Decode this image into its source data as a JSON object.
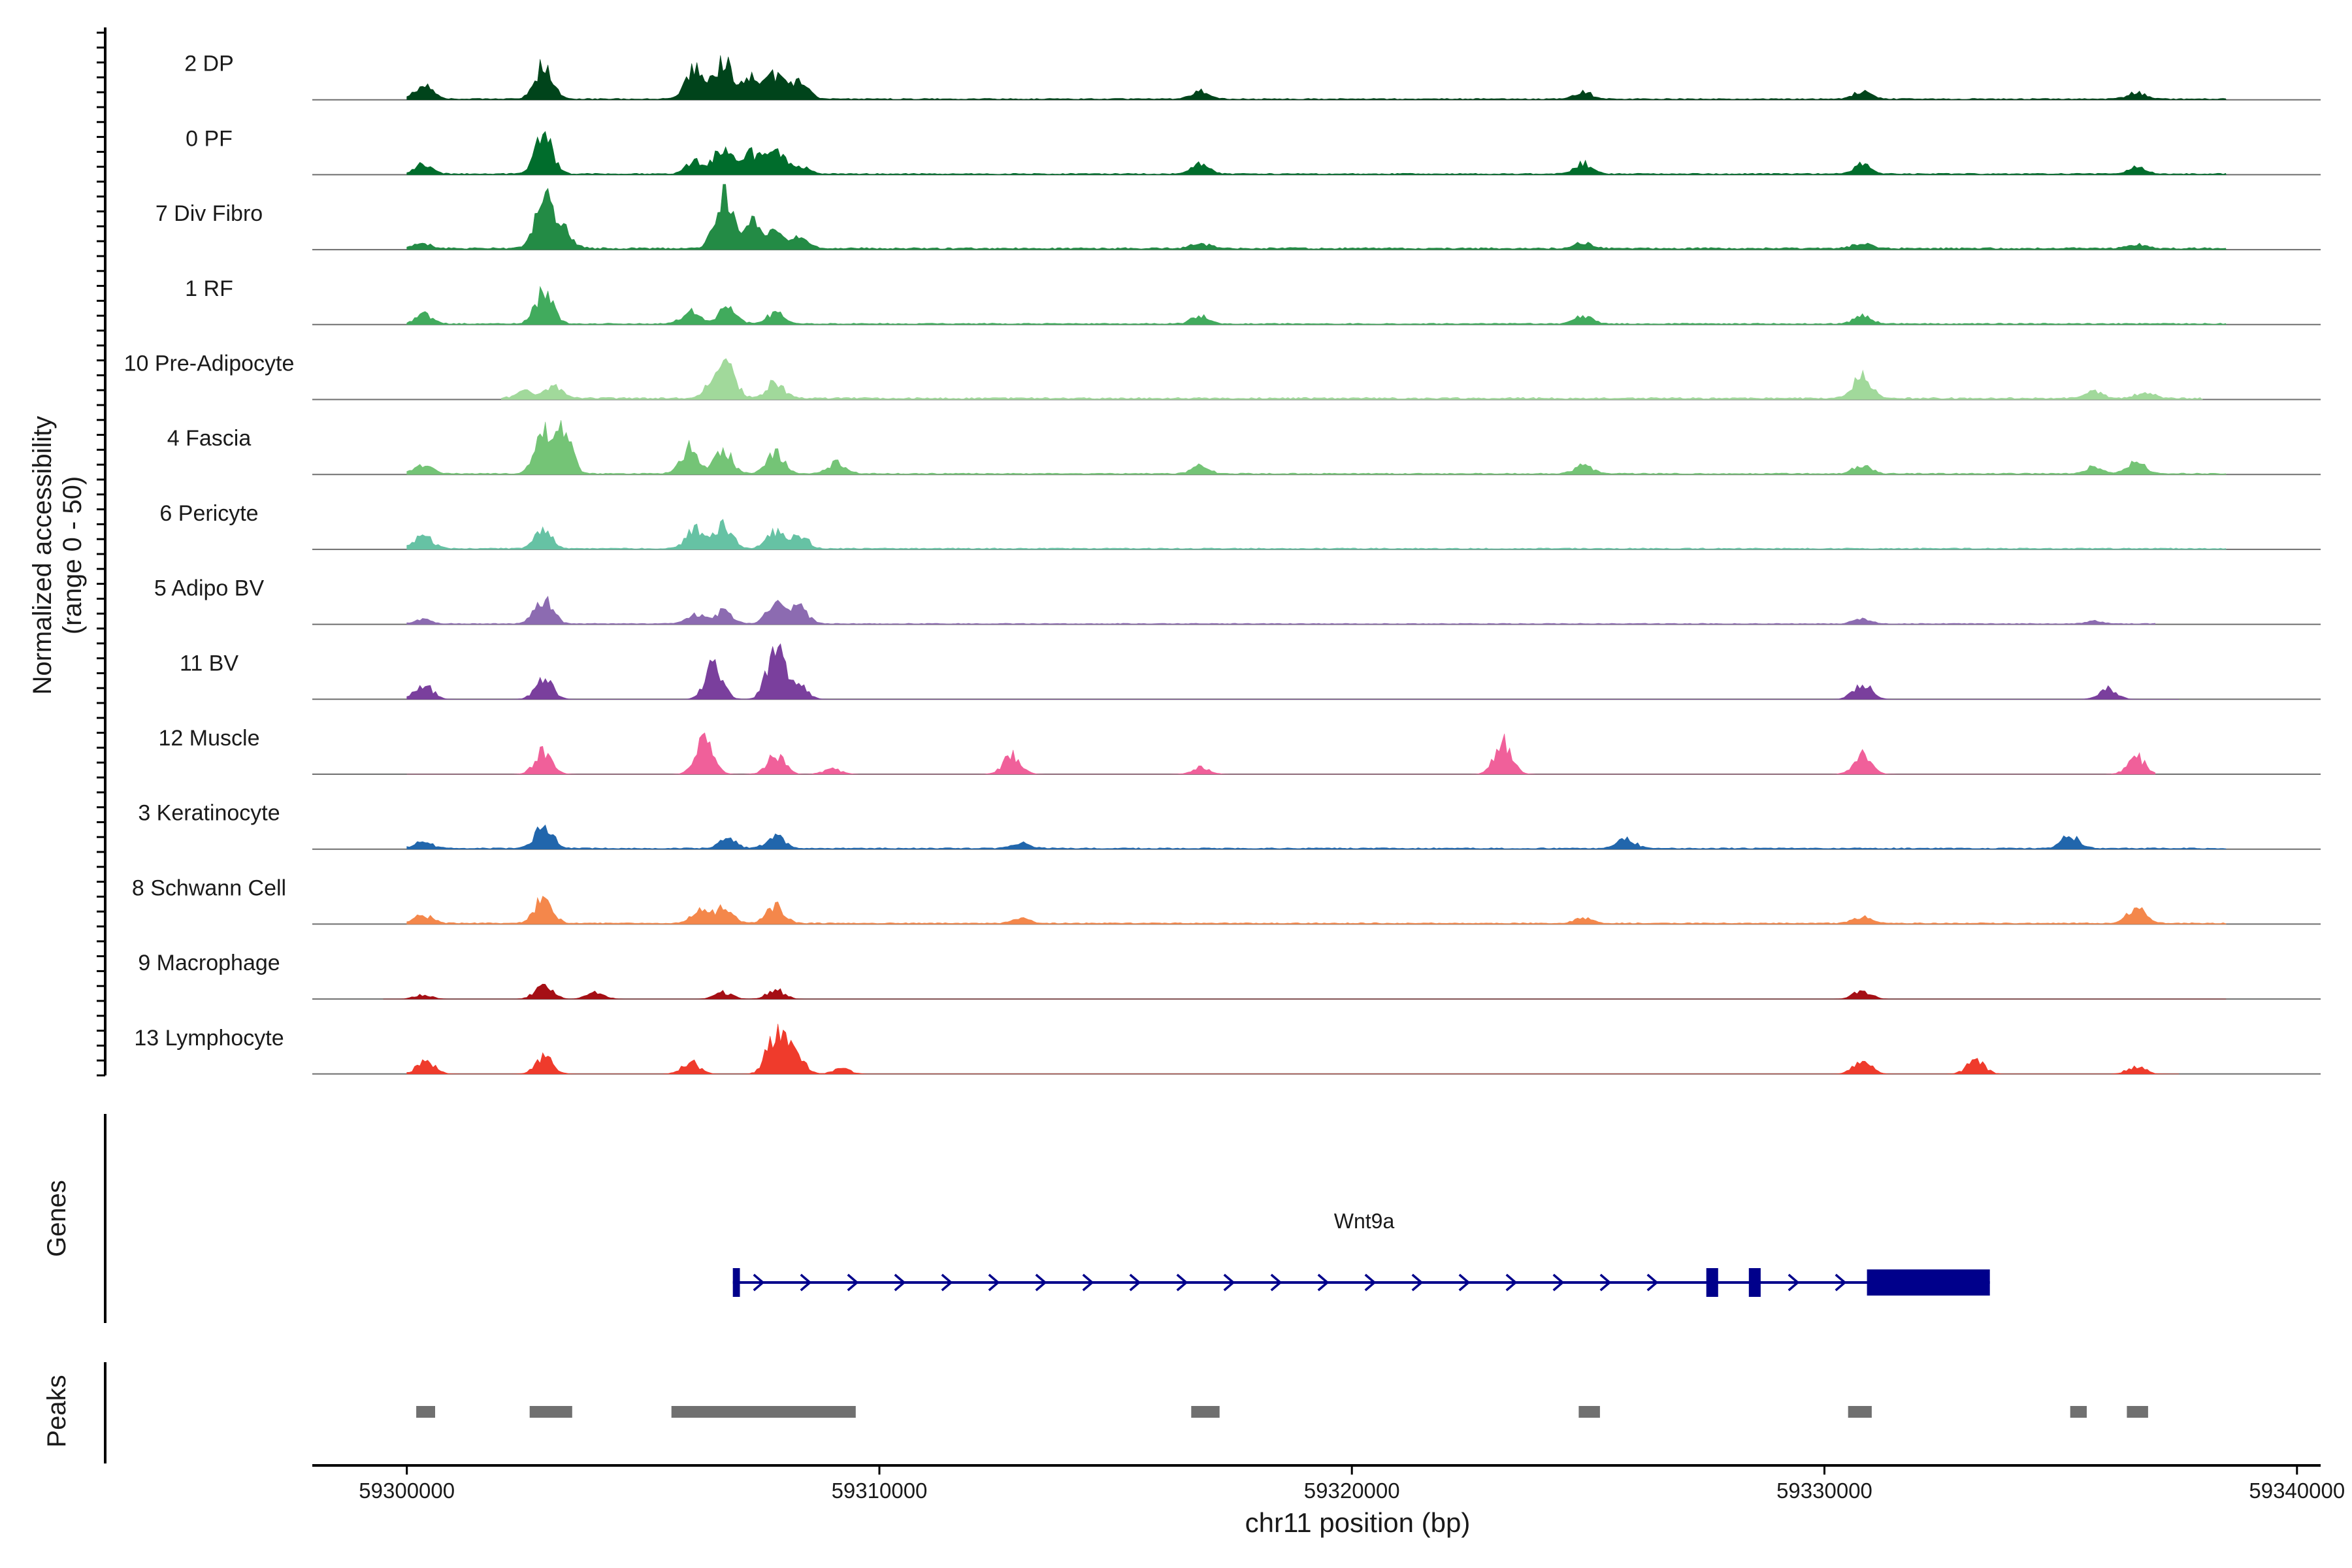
{
  "chart_data": {
    "type": "area",
    "title": "",
    "xlabel": "chr11 position (bp)",
    "ylabel_line1": "Normalized accessibility",
    "ylabel_line2": "(range 0 - 50)",
    "xlim": [
      59298000,
      59340500
    ],
    "ylim": [
      0,
      50
    ],
    "x_ticks": [
      59300000,
      59310000,
      59320000,
      59330000,
      59340000
    ],
    "x_tick_labels": [
      "59300000",
      "59310000",
      "59320000",
      "59330000",
      "59340000"
    ],
    "track_labels": {
      "genes": "Genes",
      "peaks": "Peaks"
    },
    "series": [
      {
        "name": "2 DP",
        "color": "#00441b",
        "peaks": [
          [
            59300350,
            10
          ],
          [
            59302900,
            25
          ],
          [
            59306100,
            22
          ],
          [
            59306700,
            30
          ],
          [
            59307300,
            15
          ],
          [
            59307800,
            17
          ],
          [
            59308300,
            13
          ],
          [
            59316800,
            6
          ],
          [
            59324900,
            5
          ],
          [
            59330800,
            6
          ],
          [
            59336600,
            5
          ]
        ],
        "baseline": 0.8,
        "extent": [
          59300000,
          59338500
        ]
      },
      {
        "name": "0 PF",
        "color": "#006d2c",
        "peaks": [
          [
            59300350,
            7
          ],
          [
            59302900,
            28
          ],
          [
            59306100,
            10
          ],
          [
            59306700,
            20
          ],
          [
            59307300,
            15
          ],
          [
            59307800,
            18
          ],
          [
            59308300,
            6
          ],
          [
            59316800,
            8
          ],
          [
            59324900,
            8
          ],
          [
            59330800,
            7
          ],
          [
            59336600,
            5
          ]
        ],
        "baseline": 0.8,
        "extent": [
          59300000,
          59338500
        ]
      },
      {
        "name": "7 Div Fibro",
        "color": "#238b45",
        "peaks": [
          [
            59300300,
            4
          ],
          [
            59302900,
            36
          ],
          [
            59303300,
            14
          ],
          [
            59306700,
            40
          ],
          [
            59307300,
            20
          ],
          [
            59307800,
            12
          ],
          [
            59308300,
            8
          ],
          [
            59316800,
            4
          ],
          [
            59324900,
            4
          ],
          [
            59330800,
            4
          ],
          [
            59336600,
            3
          ]
        ],
        "baseline": 1.2,
        "extent": [
          59300000,
          59338500
        ]
      },
      {
        "name": "1 RF",
        "color": "#41ab5d",
        "peaks": [
          [
            59300350,
            7
          ],
          [
            59302900,
            24
          ],
          [
            59306000,
            10
          ],
          [
            59306800,
            13
          ],
          [
            59307800,
            8
          ],
          [
            59316800,
            6
          ],
          [
            59324900,
            6
          ],
          [
            59330800,
            6
          ]
        ],
        "baseline": 0.8,
        "extent": [
          59300000,
          59338500
        ]
      },
      {
        "name": "10 Pre-Adipocyte",
        "color": "#a1d99b",
        "peaks": [
          [
            59302500,
            5
          ],
          [
            59303100,
            9
          ],
          [
            59306500,
            12
          ],
          [
            59306800,
            20
          ],
          [
            59307800,
            12
          ],
          [
            59330800,
            17
          ],
          [
            59335700,
            5
          ],
          [
            59336800,
            5
          ]
        ],
        "baseline": 1.2,
        "extent": [
          59302000,
          59338000
        ]
      },
      {
        "name": "4 Fascia",
        "color": "#74c476",
        "peaks": [
          [
            59300350,
            7
          ],
          [
            59302900,
            28
          ],
          [
            59303300,
            30
          ],
          [
            59306000,
            20
          ],
          [
            59306700,
            17
          ],
          [
            59307800,
            15
          ],
          [
            59309100,
            8
          ],
          [
            59316800,
            6
          ],
          [
            59324900,
            6
          ],
          [
            59330800,
            6
          ],
          [
            59335700,
            5
          ],
          [
            59336600,
            10
          ]
        ],
        "baseline": 0.8,
        "extent": [
          59300000,
          59338500
        ]
      },
      {
        "name": "6 Pericyte",
        "color": "#66c2a4",
        "peaks": [
          [
            59300350,
            10
          ],
          [
            59302900,
            14
          ],
          [
            59306100,
            15
          ],
          [
            59306700,
            17
          ],
          [
            59307800,
            12
          ],
          [
            59308300,
            10
          ]
        ],
        "baseline": 0.8,
        "extent": [
          59300000,
          59338500
        ]
      },
      {
        "name": "5 Adipo BV",
        "color": "#8c6bb1",
        "peaks": [
          [
            59300350,
            3
          ],
          [
            59302900,
            20
          ],
          [
            59306100,
            8
          ],
          [
            59306700,
            10
          ],
          [
            59307800,
            15
          ],
          [
            59308300,
            12
          ],
          [
            59330800,
            4
          ],
          [
            59335700,
            2
          ]
        ],
        "baseline": 0.6,
        "extent": [
          59300000,
          59337000
        ]
      },
      {
        "name": "11 BV",
        "color": "#7a3f9d",
        "peaks": [
          [
            59300350,
            12
          ],
          [
            59302900,
            15
          ],
          [
            59306500,
            25
          ],
          [
            59307800,
            40
          ],
          [
            59308300,
            10
          ],
          [
            59330800,
            12
          ],
          [
            59336000,
            8
          ]
        ],
        "baseline": 0,
        "extent": [
          59300000,
          59337500
        ]
      },
      {
        "name": "12 Muscle",
        "color": "#f0609a",
        "peaks": [
          [
            59302900,
            18
          ],
          [
            59306300,
            25
          ],
          [
            59307800,
            15
          ],
          [
            59309000,
            4
          ],
          [
            59312800,
            14
          ],
          [
            59316800,
            5
          ],
          [
            59323200,
            24
          ],
          [
            59330800,
            15
          ],
          [
            59336600,
            13
          ]
        ],
        "baseline": 0,
        "extent": [
          59300000,
          59337000
        ]
      },
      {
        "name": "3 Keratinocyte",
        "color": "#2166ac",
        "peaks": [
          [
            59300350,
            5
          ],
          [
            59302900,
            16
          ],
          [
            59306800,
            7
          ],
          [
            59307800,
            9
          ],
          [
            59313000,
            4
          ],
          [
            59325800,
            8
          ],
          [
            59335200,
            10
          ]
        ],
        "baseline": 0.8,
        "extent": [
          59300000,
          59338500
        ]
      },
      {
        "name": "8 Schwann Cell",
        "color": "#f4874b",
        "peaks": [
          [
            59300350,
            6
          ],
          [
            59302900,
            20
          ],
          [
            59306200,
            9
          ],
          [
            59306700,
            11
          ],
          [
            59307800,
            13
          ],
          [
            59313000,
            4
          ],
          [
            59324900,
            4
          ],
          [
            59330800,
            5
          ],
          [
            59336600,
            12
          ]
        ],
        "baseline": 0.8,
        "extent": [
          59300000,
          59338500
        ]
      },
      {
        "name": "9 Macrophage",
        "color": "#a50f15",
        "peaks": [
          [
            59300350,
            3
          ],
          [
            59302900,
            11
          ],
          [
            59304000,
            5
          ],
          [
            59306700,
            5
          ],
          [
            59307800,
            7
          ],
          [
            59330800,
            6
          ]
        ],
        "baseline": 0,
        "extent": [
          59299500,
          59338500
        ]
      },
      {
        "name": "13 Lymphocyte",
        "color": "#ef3b2c",
        "peaks": [
          [
            59300400,
            10
          ],
          [
            59302900,
            13
          ],
          [
            59306000,
            9
          ],
          [
            59307800,
            30
          ],
          [
            59308200,
            20
          ],
          [
            59309200,
            4
          ],
          [
            59330800,
            10
          ],
          [
            59333200,
            10
          ],
          [
            59336600,
            6
          ]
        ],
        "baseline": 0,
        "extent": [
          59300000,
          59337500
        ]
      }
    ],
    "gene": {
      "name": "Wnt9a",
      "strand": "+",
      "color": "#00008b",
      "tx_start": 59306900,
      "tx_end": 59333500,
      "exons": [
        [
          59306900,
          59307050
        ],
        [
          59327500,
          59327750
        ],
        [
          59328400,
          59328650
        ],
        [
          59330900,
          59333500
        ]
      ]
    },
    "peaks": {
      "color": "#707070",
      "regions": [
        [
          59300200,
          59300600
        ],
        [
          59302600,
          59303500
        ],
        [
          59305600,
          59309500
        ],
        [
          59316600,
          59317200
        ],
        [
          59324800,
          59325250
        ],
        [
          59330500,
          59331000
        ],
        [
          59335200,
          59335550
        ],
        [
          59336400,
          59336850
        ]
      ]
    }
  }
}
